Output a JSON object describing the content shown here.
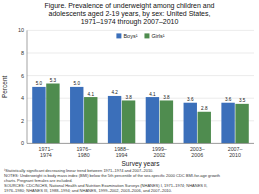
{
  "chart_data": {
    "type": "bar",
    "title": "Figure. Prevalence of underweight among children and\nadolescents aged 2-19 years, by sex: United States,\n1971–1974 through 2007–2010",
    "xlabel": "Survey years",
    "ylabel": "Percent",
    "footnote": "¹Statistically significant decreasing linear trend between 1971–1974 and 2007–2010.\nNOTES: Underweight is body mass index (BMI) below the 5th percentile of the sex-specific 2000 CDC BMI-for-age growth\ncharts. Pregnant females are included.\nSOURCES: CDC/NCHS, National Health and Nutrition Examination Surveys (NHANES) I, 1971–1974; NHANES II,\n1976–1980; NHANES III, 1988–1994; and NHANES, 1999–2002, 2003–2006, and 2007–2010.",
    "categories": [
      "1971–\n1974",
      "1976–\n1980",
      "1988–\n1994",
      "1999–\n2002",
      "2003–\n2006",
      "2007–\n2010"
    ],
    "series": [
      {
        "name": "Boys¹",
        "color": "#3b6fba",
        "values": [
          5.0,
          5.0,
          4.2,
          4.1,
          3.6,
          3.6
        ],
        "value_labels": [
          "5.0",
          "5.0",
          "4.2",
          "4.1",
          "3.6",
          "3.6"
        ]
      },
      {
        "name": "Girls¹",
        "color": "#4f8c4f",
        "values": [
          5.3,
          4.1,
          3.8,
          3.8,
          2.8,
          3.5
        ],
        "value_labels": [
          "5.3",
          "4.1",
          "3.8",
          "3.8",
          "2.8",
          "3.5"
        ]
      }
    ],
    "ylim": [
      0,
      10
    ],
    "yticks": [
      0,
      2,
      4,
      6,
      8,
      10
    ],
    "grid": true,
    "legend": "top",
    "data_labels": true
  }
}
